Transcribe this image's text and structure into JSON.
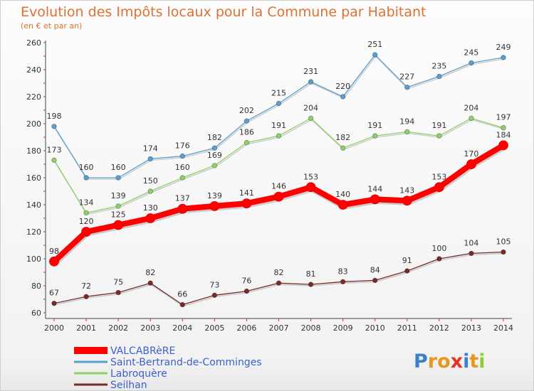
{
  "chart_data": {
    "type": "line",
    "title": "Evolution des Impôts locaux pour la Commune par Habitant",
    "subtitle": "(en € et par an)",
    "x": [
      2000,
      2001,
      2002,
      2003,
      2004,
      2005,
      2006,
      2007,
      2008,
      2009,
      2010,
      2011,
      2012,
      2013,
      2014
    ],
    "ylim": [
      60,
      260
    ],
    "yticks": [
      60,
      80,
      100,
      120,
      140,
      160,
      180,
      200,
      220,
      240,
      260
    ],
    "grid": false,
    "legend": "bottom-left",
    "series": [
      {
        "name": "Saint-Bertrand-de-Comminges",
        "color": "#5a9fcf",
        "values": [
          198,
          160,
          160,
          174,
          176,
          182,
          202,
          215,
          231,
          220,
          251,
          227,
          235,
          245,
          249
        ]
      },
      {
        "name": "Labroquère",
        "color": "#8ed167",
        "values": [
          173,
          134,
          139,
          150,
          160,
          169,
          186,
          191,
          204,
          182,
          191,
          194,
          191,
          204,
          197
        ]
      },
      {
        "name": "Seilhan",
        "color": "#7a2a2a",
        "values": [
          67,
          72,
          75,
          82,
          66,
          73,
          76,
          82,
          81,
          83,
          84,
          91,
          100,
          104,
          105
        ]
      },
      {
        "name": "VALCABRèRE",
        "color": "#ff0000",
        "highlight": true,
        "values": [
          98,
          120,
          125,
          130,
          137,
          139,
          141,
          146,
          153,
          140,
          144,
          143,
          153,
          170,
          184
        ]
      }
    ],
    "legend_order": [
      3,
      0,
      1,
      2
    ]
  },
  "brand": {
    "text": "Proxiti",
    "colors": [
      "#3c7fd1",
      "#e8961e",
      "#e8961e",
      "#e8321e",
      "#3c7fd1",
      "#e8961e",
      "#8ecd3c"
    ]
  }
}
